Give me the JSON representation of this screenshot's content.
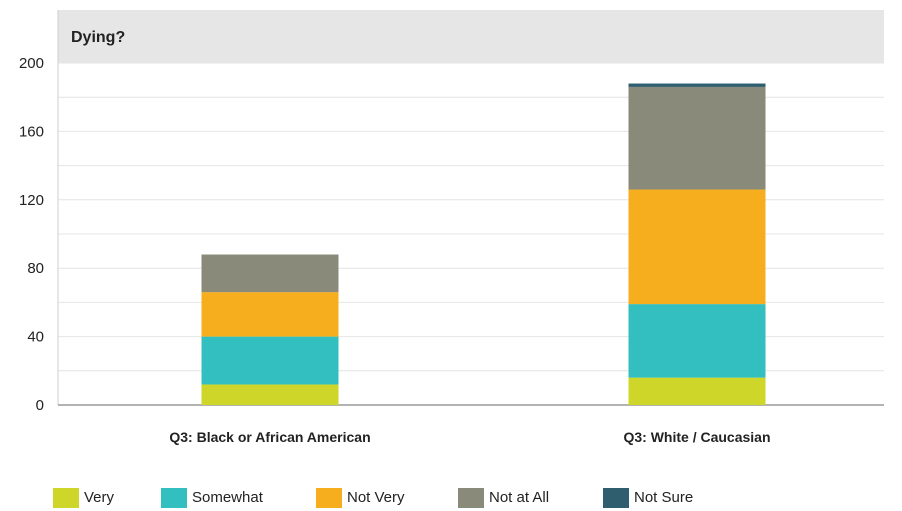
{
  "chart_data": {
    "type": "bar",
    "stacked": true,
    "title": "Dying?",
    "categories": [
      "Q3: Black or African American",
      "Q3: White / Caucasian"
    ],
    "series": [
      {
        "name": "Very",
        "color": "#cdd629",
        "values": [
          12,
          16
        ]
      },
      {
        "name": "Somewhat",
        "color": "#33bfc0",
        "values": [
          28,
          43
        ]
      },
      {
        "name": "Not Very",
        "color": "#f7ae1e",
        "values": [
          26,
          67
        ]
      },
      {
        "name": "Not at All",
        "color": "#898a79",
        "values": [
          22,
          60
        ]
      },
      {
        "name": "Not Sure",
        "color": "#2f5f6e",
        "values": [
          0,
          2
        ]
      }
    ],
    "ylim": [
      0,
      200
    ],
    "yticks": [
      0,
      40,
      80,
      120,
      160,
      200
    ],
    "grid": true,
    "legend_position": "bottom"
  }
}
